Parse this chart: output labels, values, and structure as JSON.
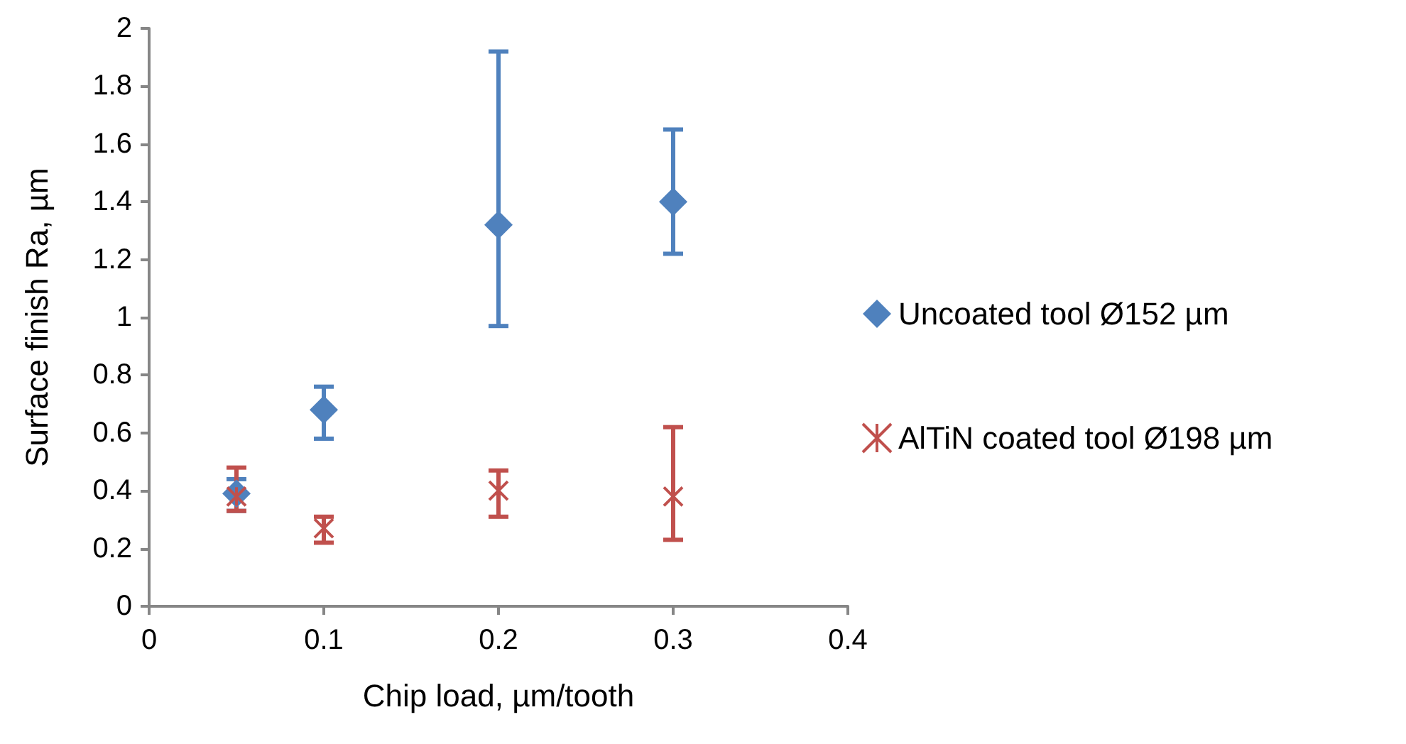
{
  "chart_data": {
    "type": "scatter",
    "xlabel": "Chip load, µm/tooth",
    "ylabel": "Surface finish Ra, µm",
    "x": [
      0.05,
      0.1,
      0.2,
      0.3
    ],
    "series": [
      {
        "name": "Uncoated tool Ø152 µm",
        "color": "#4f81bd",
        "marker": "diamond",
        "values": [
          0.39,
          0.68,
          1.32,
          1.4
        ],
        "errors": [
          [
            0.33,
            0.44
          ],
          [
            0.58,
            0.76
          ],
          [
            0.97,
            1.92
          ],
          [
            1.22,
            1.65
          ]
        ]
      },
      {
        "name": "AlTiN coated tool Ø198 µm",
        "color": "#c0504d",
        "marker": "cross",
        "values": [
          0.38,
          0.27,
          0.4,
          0.38
        ],
        "errors": [
          [
            0.33,
            0.48
          ],
          [
            0.22,
            0.31
          ],
          [
            0.31,
            0.47
          ],
          [
            0.23,
            0.62
          ]
        ]
      }
    ],
    "xlim": [
      0,
      0.4
    ],
    "xticks": [
      0,
      0.1,
      0.2,
      0.3,
      0.4
    ],
    "ylim": [
      0,
      2
    ],
    "yticks": [
      0,
      0.2,
      0.4,
      0.6,
      0.8,
      1,
      1.2,
      1.4,
      1.6,
      1.8,
      2
    ],
    "grid": false,
    "legend": "right"
  }
}
